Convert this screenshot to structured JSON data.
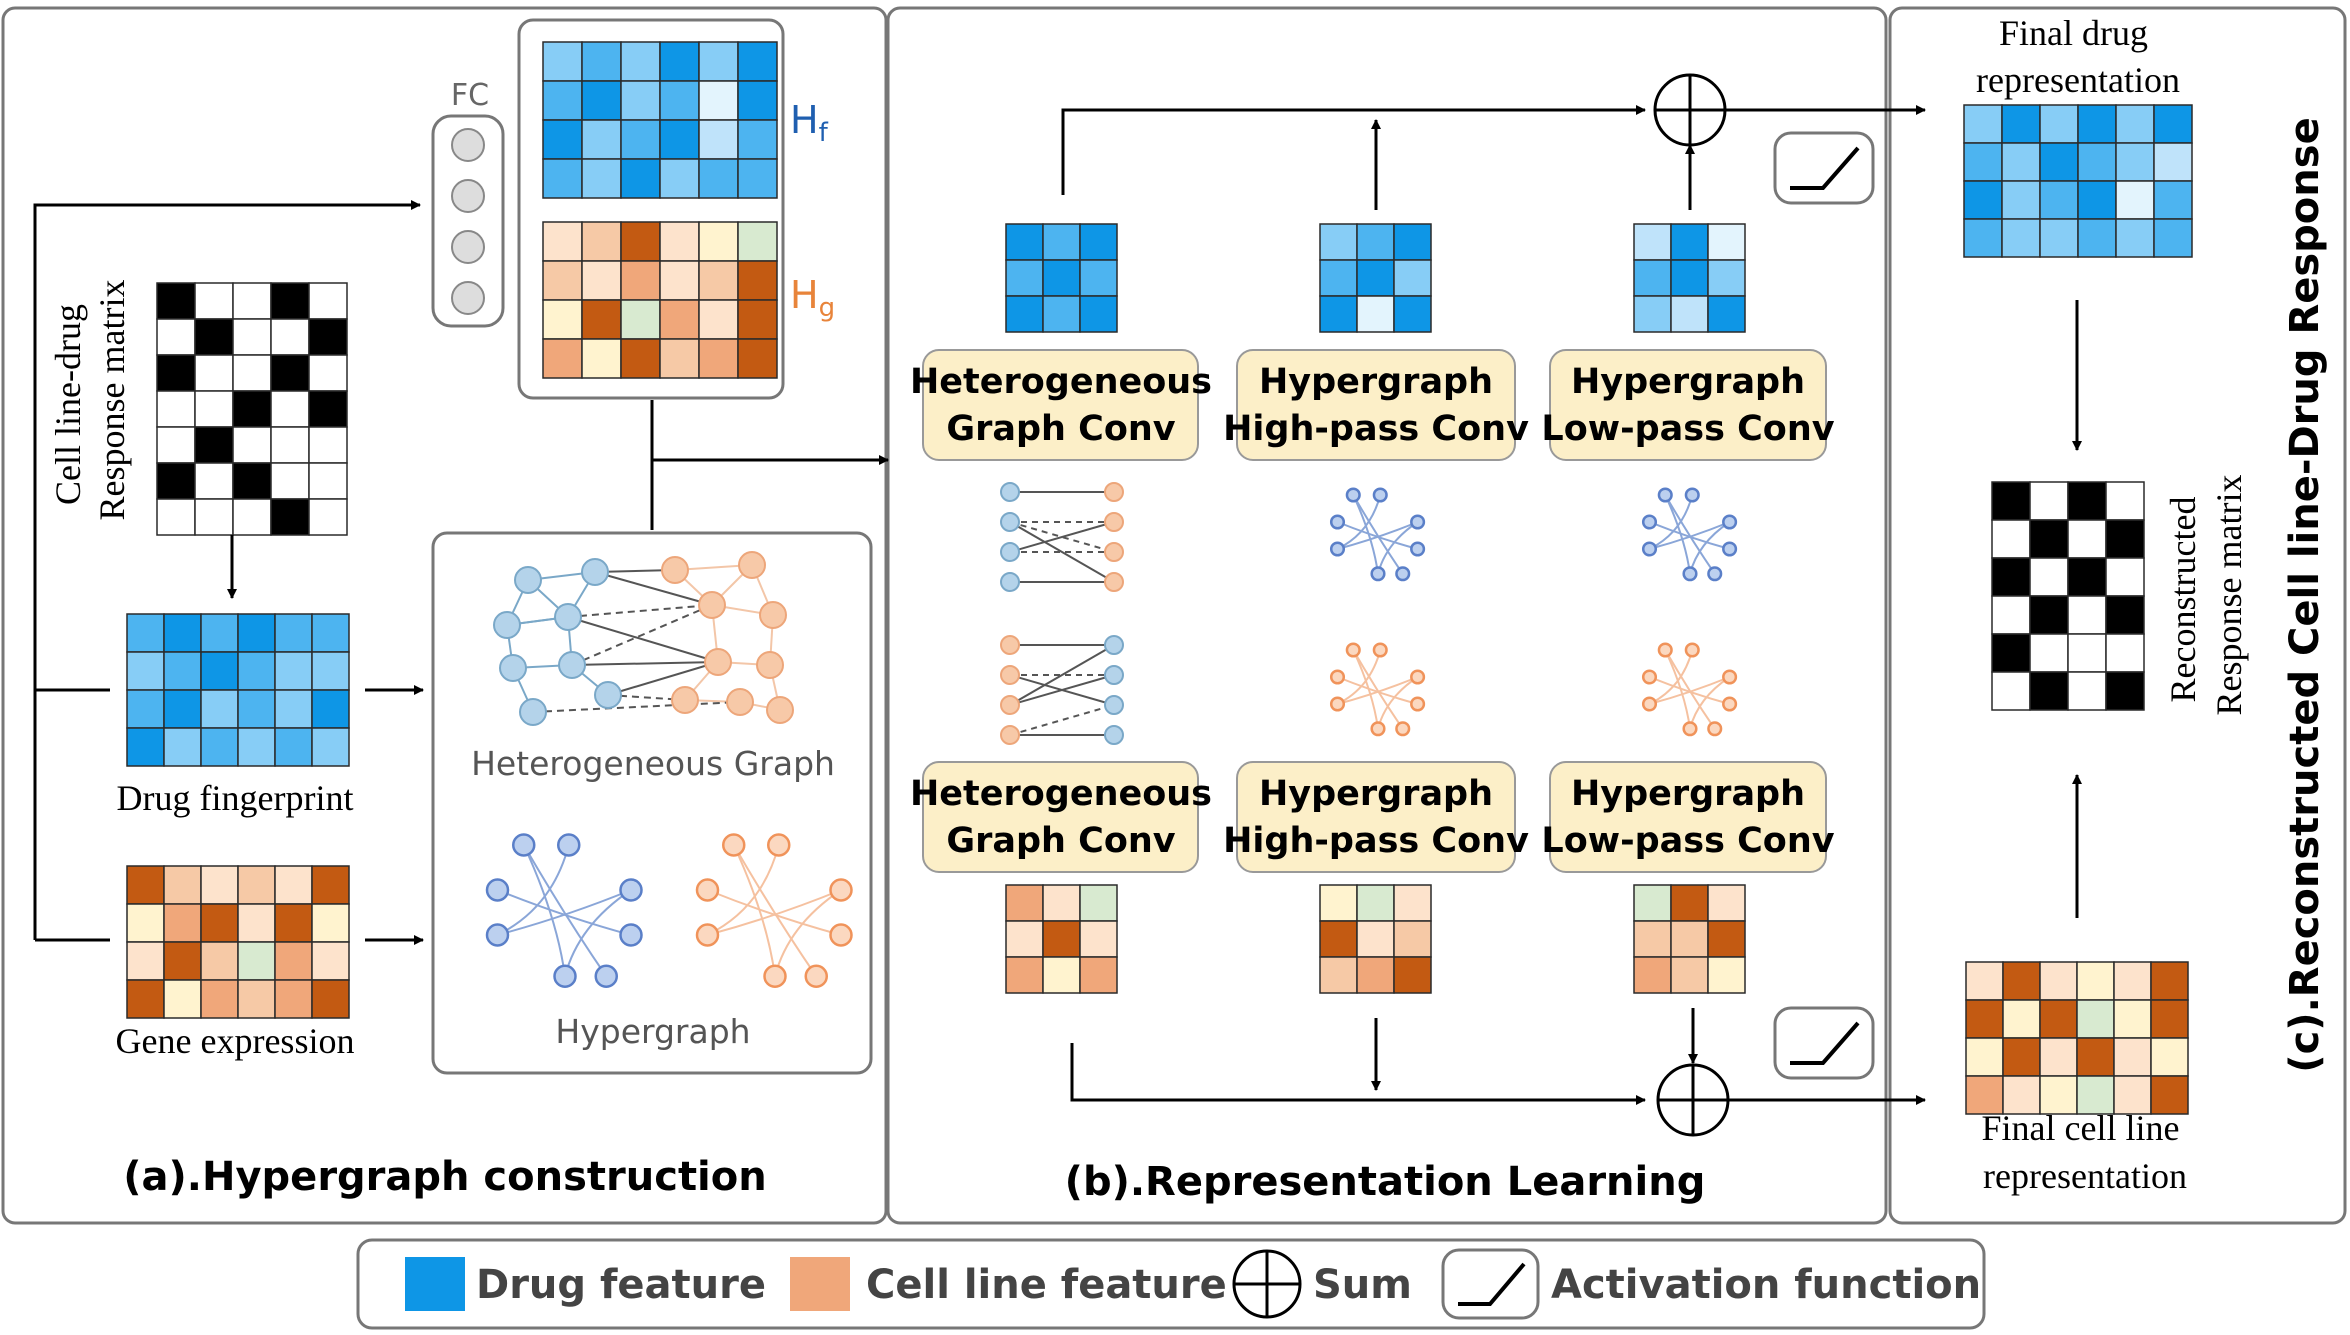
{
  "colors": {
    "drug": [
      "#0e96e6",
      "#4db4f0",
      "#87cdf6",
      "#bfe3fa",
      "#e3f4fd"
    ],
    "cell": [
      "#c35a12",
      "#f0a77a",
      "#f6c9a6",
      "#fde3cc",
      "#fff3cf",
      "#d8ead0"
    ],
    "conv_fill": "#fcefc8",
    "hyper_drug": "#5a7fc8",
    "hyper_cell": "#f0935a",
    "het_drug": "#9cc3de",
    "het_cell": "#f3b48c",
    "border": "#555555"
  },
  "panel_a": {
    "title": "(a).Hypergraph construction",
    "fc_label": "FC",
    "hf_label": "H",
    "hf_sub": "f",
    "hg_label": "H",
    "hg_sub": "g",
    "response_label_1": "Cell line-drug",
    "response_label_2": "Response matrix",
    "drug_fp_label": "Drug fingerprint",
    "gene_expr_label": "Gene expression",
    "het_graph_label": "Heterogeneous Graph",
    "hypergraph_label": "Hypergraph",
    "response_matrix": [
      [
        1,
        0,
        0,
        1,
        0
      ],
      [
        0,
        1,
        0,
        0,
        1
      ],
      [
        1,
        0,
        0,
        1,
        0
      ],
      [
        0,
        0,
        1,
        0,
        1
      ],
      [
        0,
        1,
        0,
        0,
        0
      ],
      [
        1,
        0,
        1,
        0,
        0
      ],
      [
        0,
        0,
        0,
        1,
        0
      ]
    ]
  },
  "panel_b": {
    "title": "(b).Representation Learning",
    "top_convs": [
      {
        "line1": "Heterogeneous",
        "line2": "Graph Conv"
      },
      {
        "line1": "Hypergraph",
        "line2": "High-pass Conv"
      },
      {
        "line1": "Hypergraph",
        "line2": "Low-pass Conv"
      }
    ],
    "bottom_convs": [
      {
        "line1": "Heterogeneous",
        "line2": "Graph Conv"
      },
      {
        "line1": "Hypergraph",
        "line2": "High-pass Conv"
      },
      {
        "line1": "Hypergraph",
        "line2": "Low-pass Conv"
      }
    ]
  },
  "panel_c": {
    "title": "(c).Reconstructed Cell line-Drug Response",
    "final_drug_label_1": "Final drug",
    "final_drug_label_2": "representation",
    "final_cell_label_1": "Final cell line",
    "final_cell_label_2": "representation",
    "recon_label_1": "Reconstructed",
    "recon_label_2": "Response matrix",
    "recon_matrix": [
      [
        1,
        0,
        1,
        0
      ],
      [
        0,
        1,
        0,
        1
      ],
      [
        1,
        0,
        1,
        0
      ],
      [
        0,
        1,
        0,
        1
      ],
      [
        1,
        0,
        0,
        0
      ],
      [
        0,
        1,
        0,
        1
      ]
    ]
  },
  "legend": {
    "drug_feature": "Drug feature",
    "cell_feature": "Cell line feature",
    "sum": "Sum",
    "activation": "Activation function"
  }
}
